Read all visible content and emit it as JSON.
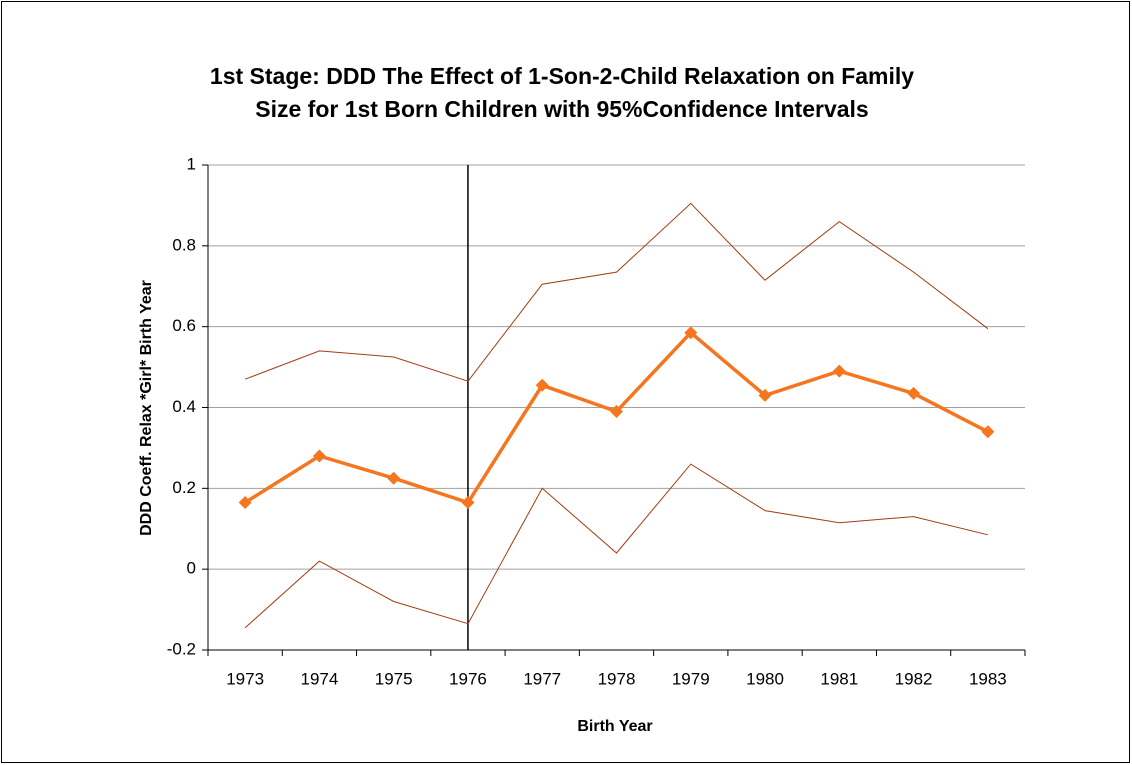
{
  "chart_data": {
    "type": "line",
    "title": [
      "1st Stage: DDD The Effect of 1-Son-2-Child Relaxation on Family",
      "Size for 1st Born Children  with 95%Confidence Intervals"
    ],
    "x_label": "Birth Year",
    "y_label": "DDD Coeff.  Relax *Girl* Birth Year",
    "categories": [
      "1973",
      "1974",
      "1975",
      "1976",
      "1977",
      "1978",
      "1979",
      "1980",
      "1981",
      "1982",
      "1983"
    ],
    "series": [
      {
        "color": "#a33a12",
        "marker": false,
        "width": 1,
        "values": [
          0.47,
          0.54,
          0.525,
          0.465,
          0.705,
          0.735,
          0.905,
          0.715,
          0.86,
          0.735,
          0.595
        ]
      },
      {
        "color": "#a33a12",
        "marker": false,
        "width": 1,
        "values": [
          -0.145,
          0.02,
          -0.08,
          -0.135,
          0.2,
          0.04,
          0.26,
          0.145,
          0.115,
          0.13,
          0.085
        ]
      },
      {
        "color": "#f5761e",
        "marker": true,
        "width": 3.5,
        "values": [
          0.165,
          0.28,
          0.225,
          0.165,
          0.455,
          0.39,
          0.585,
          0.43,
          0.49,
          0.435,
          0.34
        ]
      }
    ],
    "reference_line": "1976",
    "ylim": [
      -0.2,
      1
    ],
    "yticks": [
      -0.2,
      0,
      0.2,
      0.4,
      0.6,
      0.8,
      1
    ],
    "grid": true
  }
}
